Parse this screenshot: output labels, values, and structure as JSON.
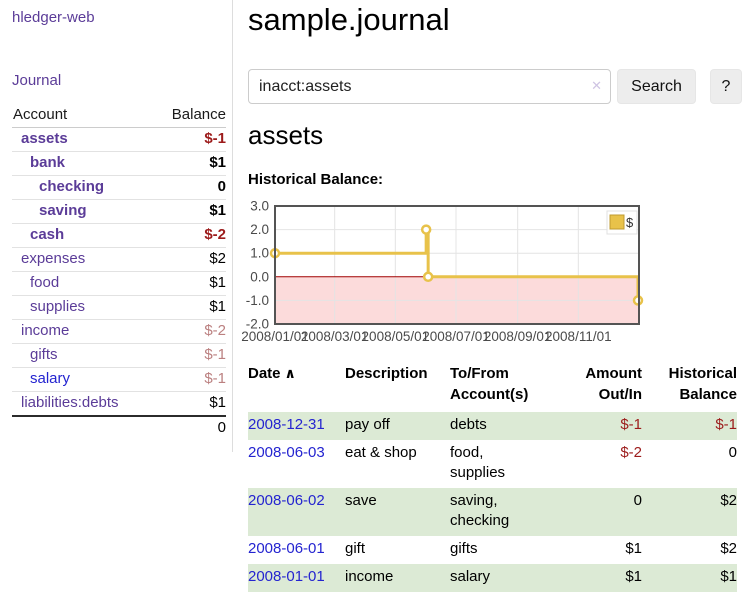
{
  "colors": {
    "purple": "#5b3c98",
    "link_blue": "#2424d0",
    "negative": "#9c1b1b",
    "negative_dim": "#bb8080",
    "stripe": "#dcead5",
    "gold": "#e8c24a",
    "gold_dark": "#bf9b30",
    "pink": "#fcdbdb",
    "zero_line": "#a00000",
    "button_bg": "#ededed",
    "grid": "#e4e4e4",
    "chart_border": "#545454",
    "tick_text": "#4a4a4a"
  },
  "app": {
    "title": "hledger-web"
  },
  "nav": {
    "journal": "Journal"
  },
  "sidebar": {
    "columns": {
      "account": "Account",
      "balance": "Balance"
    },
    "accounts": [
      {
        "name": "assets",
        "balance": "$-1",
        "indent": 1,
        "bold": true,
        "balance_class": "neg"
      },
      {
        "name": "bank",
        "balance": "$1",
        "indent": 2,
        "bold": true,
        "balance_class": "pos"
      },
      {
        "name": "checking",
        "balance": "0",
        "indent": 3,
        "bold": true,
        "balance_class": "pos"
      },
      {
        "name": "saving",
        "balance": "$1",
        "indent": 3,
        "bold": true,
        "balance_class": "pos"
      },
      {
        "name": "cash",
        "balance": "$-2",
        "indent": 2,
        "bold": true,
        "balance_class": "neg"
      },
      {
        "name": "expenses",
        "balance": "$2",
        "indent": 1,
        "bold": false,
        "balance_class": "pos"
      },
      {
        "name": "food",
        "balance": "$1",
        "indent": 2,
        "bold": false,
        "balance_class": "pos"
      },
      {
        "name": "supplies",
        "balance": "$1",
        "indent": 2,
        "bold": false,
        "balance_class": "pos"
      },
      {
        "name": "income",
        "balance": "$-2",
        "indent": 1,
        "bold": false,
        "balance_class": "dim"
      },
      {
        "name": "gifts",
        "balance": "$-1",
        "indent": 2,
        "bold": false,
        "balance_class": "dim"
      },
      {
        "name": "salary",
        "balance": "$-1",
        "indent": 2,
        "bold": false,
        "balance_class": "dim",
        "name_color": "blue"
      },
      {
        "name": "liabilities:debts",
        "balance": "$1",
        "indent": 1,
        "bold": false,
        "balance_class": "pos"
      }
    ],
    "total": "0"
  },
  "header": {
    "title": "sample.journal"
  },
  "search": {
    "value": "inacct:assets",
    "clear_icon": "✕",
    "button_label": "Search",
    "help_label": "?"
  },
  "account_view": {
    "heading": "assets",
    "chart_title": "Historical Balance:"
  },
  "chart_data": {
    "type": "line",
    "step": true,
    "title": "Historical Balance",
    "x_range": [
      "2008-01-01",
      "2009-01-01"
    ],
    "y_range": [
      -2,
      3
    ],
    "y_ticks": [
      3,
      2,
      1,
      0,
      -1,
      -2
    ],
    "x_ticks": [
      "2008/01/01",
      "2008/03/01",
      "2008/05/01",
      "2008/07/01",
      "2008/09/01",
      "2008/11/01"
    ],
    "legend": [
      {
        "label": "$"
      }
    ],
    "legend_position": "top-right",
    "grid": true,
    "negative_region": true,
    "series": [
      {
        "name": "$",
        "points": [
          [
            "2008-01-01",
            1
          ],
          [
            "2008-06-01",
            2
          ],
          [
            "2008-06-03",
            0
          ],
          [
            "2008-12-31",
            -1
          ]
        ]
      }
    ]
  },
  "register": {
    "headers": [
      {
        "lines": [
          "Date"
        ],
        "align": "left",
        "sort_icon": "∧"
      },
      {
        "lines": [
          "Description"
        ],
        "align": "left"
      },
      {
        "lines": [
          "To/From",
          "Account(s)"
        ],
        "align": "left"
      },
      {
        "lines": [
          "Amount",
          "Out/In"
        ],
        "align": "right"
      },
      {
        "lines": [
          "Historical",
          "Balance"
        ],
        "align": "right"
      }
    ],
    "rows": [
      {
        "date": "2008-12-31",
        "description": "pay off",
        "accounts": "debts",
        "amount": "$-1",
        "amount_class": "neg",
        "balance": "$-1",
        "balance_class": "neg",
        "shaded": true
      },
      {
        "date": "2008-06-03",
        "description": "eat & shop",
        "accounts": "food, supplies",
        "amount": "$-2",
        "amount_class": "neg",
        "balance": "0",
        "balance_class": "pos",
        "shaded": false
      },
      {
        "date": "2008-06-02",
        "description": "save",
        "accounts": "saving, checking",
        "amount": "0",
        "amount_class": "pos",
        "balance": "$2",
        "balance_class": "pos",
        "shaded": true
      },
      {
        "date": "2008-06-01",
        "description": "gift",
        "accounts": "gifts",
        "amount": "$1",
        "amount_class": "pos",
        "balance": "$2",
        "balance_class": "pos",
        "shaded": false
      },
      {
        "date": "2008-01-01",
        "description": "income",
        "accounts": "salary",
        "amount": "$1",
        "amount_class": "pos",
        "balance": "$1",
        "balance_class": "pos",
        "shaded": true
      }
    ]
  }
}
